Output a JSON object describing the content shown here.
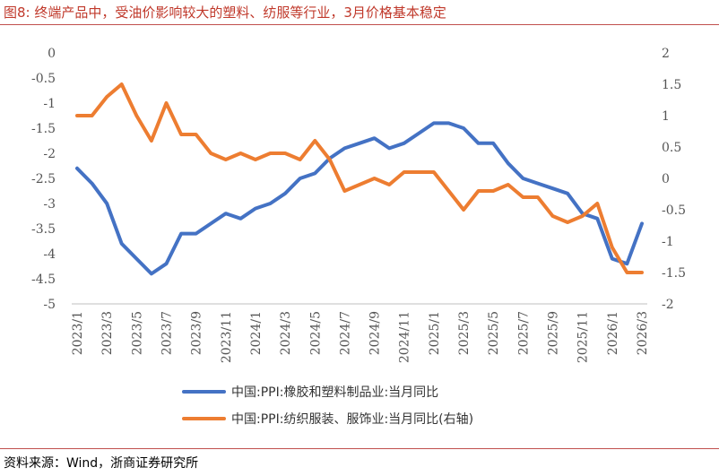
{
  "title": "图8:  终端产品中，受油价影响较大的塑料、纺服等行业，3月价格基本稳定",
  "source": "资料来源：Wind，浙商证券研究所",
  "chart_data": {
    "type": "line",
    "x_tick_labels": [
      "2023/1",
      "2023/3",
      "2023/5",
      "2023/7",
      "2023/9",
      "2023/11",
      "2024/1",
      "2024/3",
      "2024/5",
      "2024/7",
      "2024/9",
      "2024/11",
      "2025/1",
      "2025/3",
      "2025/5",
      "2025/7",
      "2025/9",
      "2025/11",
      "2026/1",
      "2026/3"
    ],
    "x": [
      "2023/1",
      "2023/2",
      "2023/3",
      "2023/4",
      "2023/5",
      "2023/6",
      "2023/7",
      "2023/8",
      "2023/9",
      "2023/10",
      "2023/11",
      "2023/12",
      "2024/1",
      "2024/2",
      "2024/3",
      "2024/4",
      "2024/5",
      "2024/6",
      "2024/7",
      "2024/8",
      "2024/9",
      "2024/10",
      "2024/11",
      "2024/12",
      "2025/1",
      "2025/2",
      "2025/3",
      "2025/4",
      "2025/5",
      "2025/6",
      "2025/7",
      "2025/8",
      "2025/9",
      "2025/10",
      "2025/11",
      "2025/12",
      "2026/1",
      "2026/2",
      "2026/3"
    ],
    "left_axis": {
      "ylim": [
        -5,
        0
      ],
      "ticks": [
        "0",
        "-0.5",
        "-1",
        "-1.5",
        "-2",
        "-2.5",
        "-3",
        "-3.5",
        "-4",
        "-4.5",
        "-5"
      ]
    },
    "right_axis": {
      "ylim": [
        -2,
        2
      ],
      "ticks": [
        "2",
        "1.5",
        "1",
        "0.5",
        "0",
        "-0.5",
        "-1",
        "-1.5",
        "-2"
      ]
    },
    "grid": false,
    "legend_position": "bottom",
    "series": [
      {
        "name": "中国:PPI:橡胶和塑料制品业:当月同比",
        "axis": "left",
        "color": "#4472c4",
        "values": [
          -2.3,
          -2.6,
          -3.0,
          -3.8,
          -4.1,
          -4.4,
          -4.2,
          -3.6,
          -3.6,
          -3.4,
          -3.2,
          -3.3,
          -3.1,
          -3.0,
          -2.8,
          -2.5,
          -2.4,
          -2.1,
          -1.9,
          -1.8,
          -1.7,
          -1.9,
          -1.8,
          -1.6,
          -1.4,
          -1.4,
          -1.5,
          -1.8,
          -1.8,
          -2.2,
          -2.5,
          -2.6,
          -2.7,
          -2.8,
          -3.2,
          -3.3,
          -4.1,
          -4.2,
          -3.4
        ]
      },
      {
        "name": "中国:PPI:纺织服装、服饰业:当月同比(右轴)",
        "axis": "right",
        "color": "#ed7d31",
        "values": [
          1.0,
          1.0,
          1.3,
          1.5,
          1.0,
          0.6,
          1.2,
          0.7,
          0.7,
          0.4,
          0.3,
          0.4,
          0.3,
          0.4,
          0.4,
          0.3,
          0.6,
          0.3,
          -0.2,
          -0.1,
          0.0,
          -0.1,
          0.1,
          0.1,
          0.1,
          -0.2,
          -0.5,
          -0.2,
          -0.2,
          -0.1,
          -0.3,
          -0.3,
          -0.6,
          -0.7,
          -0.6,
          -0.4,
          -1.1,
          -1.5,
          -1.5
        ]
      }
    ]
  }
}
